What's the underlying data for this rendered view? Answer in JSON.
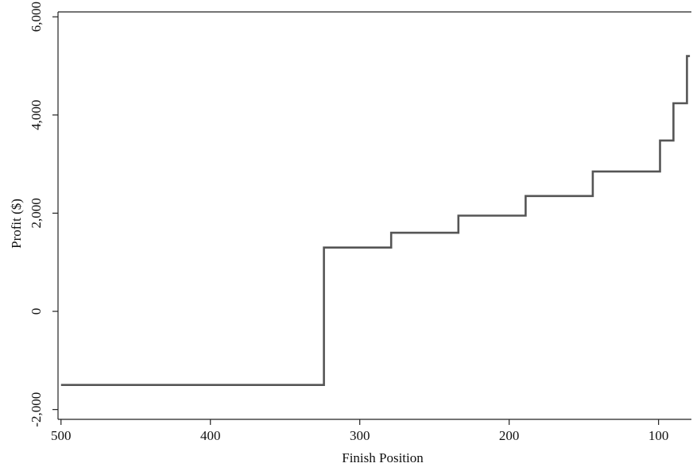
{
  "chart_data": {
    "type": "line",
    "title": "",
    "xlabel": "Finish Position",
    "ylabel": "Profit ($)",
    "xlim": [
      502,
      78
    ],
    "ylim": [
      -2200,
      6100
    ],
    "x_reversed": true,
    "grid": false,
    "legend": "none",
    "line_color": "#555555",
    "step": true,
    "x_ticks": [
      {
        "value": 500,
        "label": "500"
      },
      {
        "value": 400,
        "label": "400"
      },
      {
        "value": 300,
        "label": "300"
      },
      {
        "value": 200,
        "label": "200"
      },
      {
        "value": 100,
        "label": "100"
      }
    ],
    "y_ticks": [
      {
        "value": -2000,
        "label": "-2,000"
      },
      {
        "value": 0,
        "label": "0"
      },
      {
        "value": 2000,
        "label": "2,000"
      },
      {
        "value": 4000,
        "label": "4,000"
      },
      {
        "value": 6000,
        "label": "6,000"
      }
    ],
    "series": [
      {
        "x": [
          500,
          324,
          324,
          279,
          279,
          234,
          234,
          189,
          189,
          144,
          144,
          99,
          99,
          90,
          90,
          81,
          81,
          79
        ],
        "values": [
          -1500,
          -1500,
          1300,
          1300,
          1600,
          1600,
          1950,
          1950,
          2350,
          2350,
          2850,
          2850,
          3480,
          3480,
          4240,
          4240,
          5200,
          5200
        ]
      }
    ]
  }
}
